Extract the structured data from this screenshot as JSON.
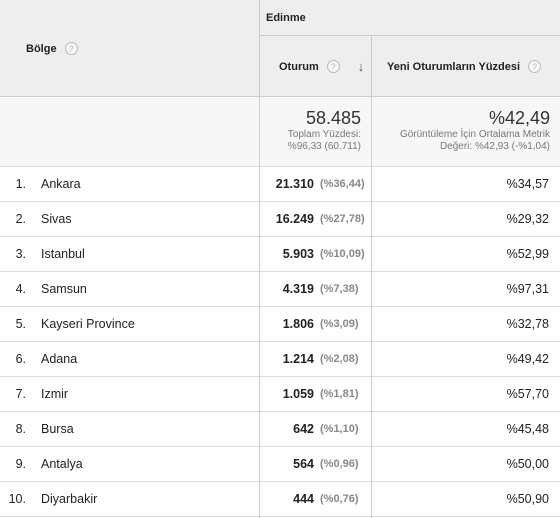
{
  "header": {
    "region_label": "Bölge",
    "group_label": "Edinme",
    "sessions_label": "Oturum",
    "new_sessions_label": "Yeni Oturumların Yüzdesi",
    "help_glyph": "?",
    "sort_glyph": "↓"
  },
  "totals": {
    "sessions_value": "58.485",
    "sessions_sub1": "Toplam Yüzdesi:",
    "sessions_sub2": "%96,33 (60.711)",
    "new_value": "%42,49",
    "new_sub1": "Görüntüleme İçin Ortalama Metrik",
    "new_sub2": "Değeri: %42,93 (-%1,04)"
  },
  "rows": [
    {
      "num": "1.",
      "region": "Ankara",
      "sessions": "21.310",
      "pct": "(%36,44)",
      "new_pct": "%34,57"
    },
    {
      "num": "2.",
      "region": "Sivas",
      "sessions": "16.249",
      "pct": "(%27,78)",
      "new_pct": "%29,32"
    },
    {
      "num": "3.",
      "region": "Istanbul",
      "sessions": "5.903",
      "pct": "(%10,09)",
      "new_pct": "%52,99"
    },
    {
      "num": "4.",
      "region": "Samsun",
      "sessions": "4.319",
      "pct": "(%7,38)",
      "new_pct": "%97,31"
    },
    {
      "num": "5.",
      "region": "Kayseri Province",
      "sessions": "1.806",
      "pct": "(%3,09)",
      "new_pct": "%32,78"
    },
    {
      "num": "6.",
      "region": "Adana",
      "sessions": "1.214",
      "pct": "(%2,08)",
      "new_pct": "%49,42"
    },
    {
      "num": "7.",
      "region": "Izmir",
      "sessions": "1.059",
      "pct": "(%1,81)",
      "new_pct": "%57,70"
    },
    {
      "num": "8.",
      "region": "Bursa",
      "sessions": "642",
      "pct": "(%1,10)",
      "new_pct": "%45,48"
    },
    {
      "num": "9.",
      "region": "Antalya",
      "sessions": "564",
      "pct": "(%0,96)",
      "new_pct": "%50,00"
    },
    {
      "num": "10.",
      "region": "Diyarbakir",
      "sessions": "444",
      "pct": "(%0,76)",
      "new_pct": "%50,90"
    }
  ]
}
